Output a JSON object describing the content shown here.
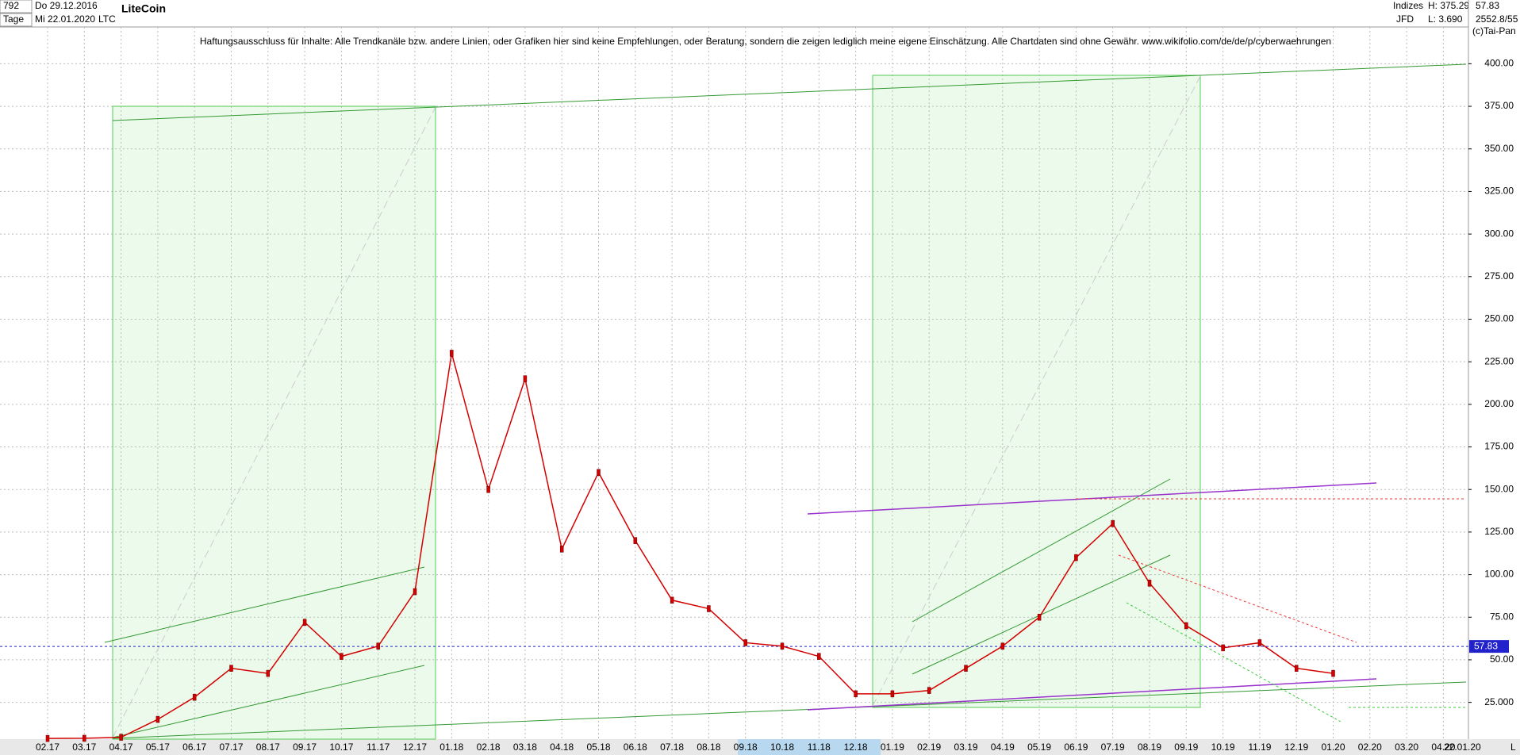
{
  "header": {
    "id": "792",
    "from": "Do 29.12.2016",
    "period": "Tage",
    "to": "Mi 22.01.2020",
    "symbol": "LTC",
    "name": "LiteCoin",
    "group": "Indizes",
    "source": "JFD",
    "high": "H: 375.29",
    "low": "L: 3.690",
    "last": "57.83",
    "extra": "2552.8/55",
    "copyright": "(c)Tai-Pan",
    "date": "22.01.20",
    "scale": "L"
  },
  "chart_data": {
    "type": "line",
    "annotation": "Haftungsausschluss für Inhalte: Alle Trendkanäle bzw. andere Linien, oder Grafiken hier sind keine Empfehlungen, oder Beratung, sondern die zeigen lediglich meine eigene Einschätzung. Alle Chartdaten sind ohne Gewähr.  www.wikifolio.com/de/de/p/cyberwaehrungen",
    "categories": [
      "02.17",
      "03.17",
      "04.17",
      "05.17",
      "06.17",
      "07.17",
      "08.17",
      "09.17",
      "10.17",
      "11.17",
      "12.17",
      "01.18",
      "02.18",
      "03.18",
      "04.18",
      "05.18",
      "06.18",
      "07.18",
      "08.18",
      "09.18",
      "10.18",
      "11.18",
      "12.18",
      "01.19",
      "02.19",
      "03.19",
      "04.19",
      "05.19",
      "06.19",
      "07.19",
      "08.19",
      "09.19",
      "10.19",
      "11.19",
      "12.19",
      "01.20",
      "02.20",
      "03.20",
      "04.20"
    ],
    "values": [
      3.8,
      3.9,
      4.5,
      15,
      28,
      45,
      42,
      72,
      52,
      58,
      90,
      230,
      150,
      215,
      115,
      160,
      120,
      85,
      80,
      60,
      58,
      52,
      30,
      30,
      32,
      45,
      58,
      75,
      110,
      130,
      95,
      70,
      57,
      60,
      45,
      42,
      null,
      null,
      null
    ],
    "color": "#d40000",
    "last_price": 57.83,
    "ylim": [
      3.4,
      421.6
    ],
    "yticks": [
      {
        "value": 25,
        "label": "25.000"
      },
      {
        "value": 50,
        "label": "50.00"
      },
      {
        "value": 75,
        "label": "75.00"
      },
      {
        "value": 100,
        "label": "100.00"
      },
      {
        "value": 125,
        "label": "125.00"
      },
      {
        "value": 150,
        "label": "150.00"
      },
      {
        "value": 175,
        "label": "175.00"
      },
      {
        "value": 200,
        "label": "200.00"
      },
      {
        "value": 225,
        "label": "225.00"
      },
      {
        "value": 250,
        "label": "250.00"
      },
      {
        "value": 275,
        "label": "275.00"
      },
      {
        "value": 300,
        "label": "300.00"
      },
      {
        "value": 325,
        "label": "325.00"
      },
      {
        "value": 350,
        "label": "350.00"
      },
      {
        "value": 375,
        "label": "375.00"
      },
      {
        "value": 400,
        "label": "400.00"
      }
    ],
    "grid": true
  }
}
